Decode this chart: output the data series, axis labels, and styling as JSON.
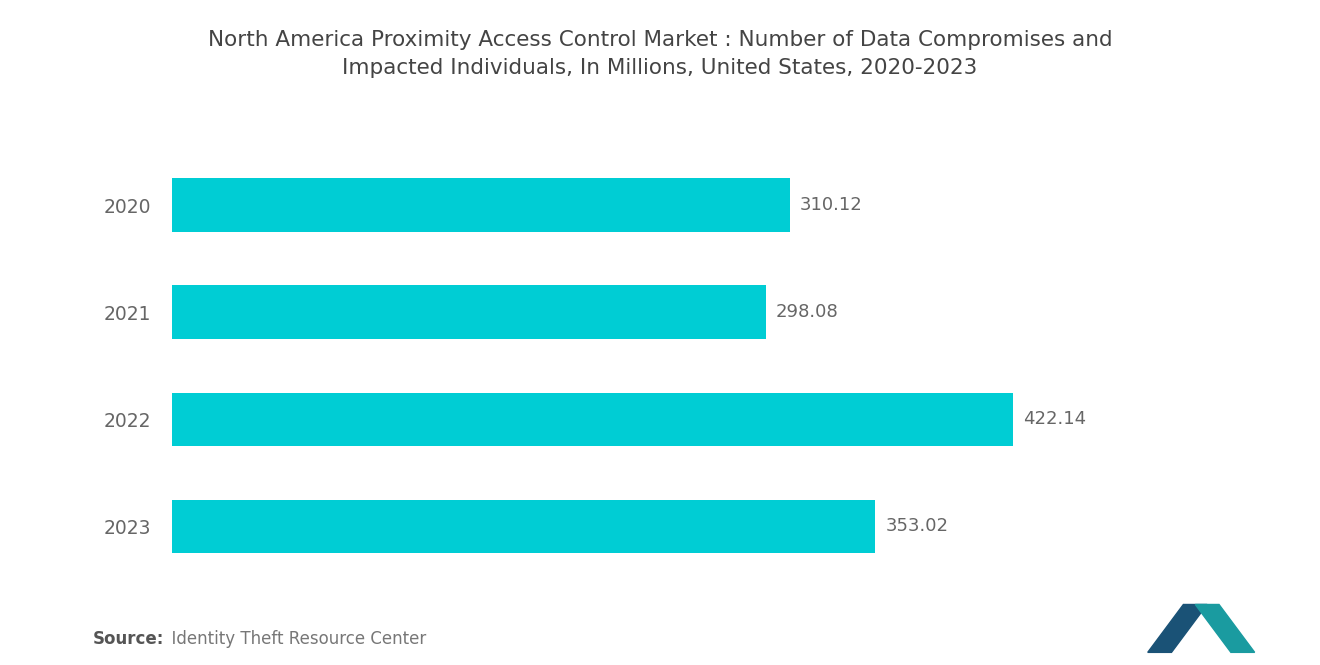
{
  "title": "North America Proximity Access Control Market : Number of Data Compromises and\nImpacted Individuals, In Millions, United States, 2020-2023",
  "categories": [
    "2023",
    "2022",
    "2021",
    "2020"
  ],
  "values": [
    353.02,
    422.14,
    298.08,
    310.12
  ],
  "bar_color": "#00CDD4",
  "label_color": "#666666",
  "title_color": "#444444",
  "background_color": "#ffffff",
  "source_bold": "Source:",
  "source_rest": "  Identity Theft Resource Center",
  "xlim": [
    0,
    490
  ],
  "bar_height": 0.5,
  "title_fontsize": 15.5,
  "label_fontsize": 13.5,
  "value_fontsize": 13,
  "source_fontsize": 12
}
